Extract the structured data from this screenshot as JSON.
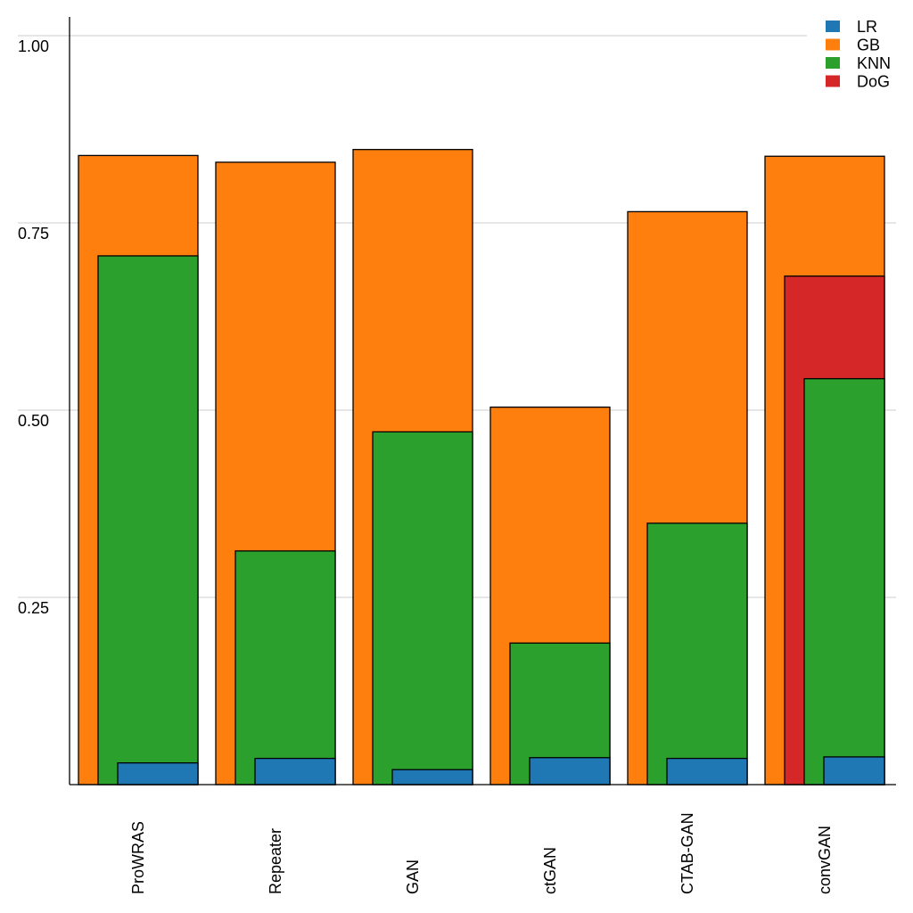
{
  "chart_data": {
    "type": "bar",
    "layout": "overlapping",
    "title": "",
    "xlabel": "",
    "ylabel": "",
    "ylim": [
      0,
      1.02
    ],
    "yticks": [
      0.25,
      0.5,
      0.75,
      1.0
    ],
    "ytick_labels": [
      "0.25",
      "0.50",
      "0.75",
      "1.00"
    ],
    "grid": "horizontal",
    "legend_position": "top-right",
    "categories": [
      "ProWRAS",
      "Repeater",
      "GAN",
      "ctGAN",
      "CTAB-GAN",
      "convGAN"
    ],
    "series": [
      {
        "name": "GB",
        "color": "#ff7f0e",
        "values": [
          0.84,
          0.831,
          0.848,
          0.504,
          0.765,
          0.839
        ]
      },
      {
        "name": "DoG",
        "color": "#d62728",
        "values": [
          null,
          null,
          null,
          null,
          null,
          0.679
        ]
      },
      {
        "name": "KNN",
        "color": "#2ca02c",
        "values": [
          0.706,
          0.312,
          0.471,
          0.189,
          0.349,
          0.542
        ]
      },
      {
        "name": "LR",
        "color": "#1f77b4",
        "values": [
          0.029,
          0.035,
          0.02,
          0.036,
          0.035,
          0.037
        ]
      }
    ],
    "legend": [
      {
        "name": "LR",
        "color": "#1f77b4"
      },
      {
        "name": "GB",
        "color": "#ff7f0e"
      },
      {
        "name": "KNN",
        "color": "#2ca02c"
      },
      {
        "name": "DoG",
        "color": "#d62728"
      }
    ]
  }
}
